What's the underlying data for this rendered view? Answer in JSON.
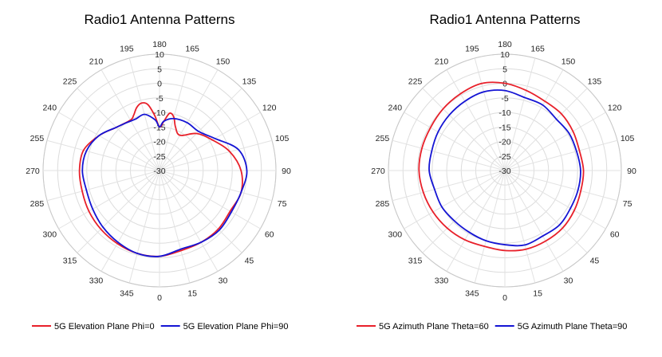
{
  "chart_data": [
    {
      "type": "polar-line",
      "title": "Radio1 Antenna Patterns",
      "r_ticks": [
        "10",
        "5",
        "0",
        "-5",
        "-10",
        "-15",
        "-20",
        "-25",
        "-30"
      ],
      "angle_ticks": [
        "0",
        "15",
        "30",
        "45",
        "60",
        "75",
        "90",
        "105",
        "120",
        "135",
        "150",
        "165",
        "180",
        "195",
        "210",
        "225",
        "240",
        "255",
        "270",
        "285",
        "300",
        "315",
        "330",
        "345"
      ],
      "rlim": [
        -30,
        10
      ],
      "grid": true,
      "legend": "bottom",
      "series": [
        {
          "name": "5G Elevation Plane Phi=0",
          "color": "#e8202a",
          "theta": [
            0,
            15,
            30,
            45,
            60,
            75,
            90,
            105,
            120,
            135,
            150,
            160,
            165,
            170,
            175,
            180,
            185,
            190,
            195,
            200,
            205,
            210,
            225,
            240,
            255,
            270,
            285,
            300,
            315,
            330,
            345
          ],
          "r": [
            -0.5,
            -1.5,
            -1.5,
            -1.5,
            -2,
            -1,
            -2,
            -5,
            -9,
            -12,
            -16,
            -14,
            -11,
            -10,
            -13,
            -15,
            -11,
            -7,
            -6,
            -7,
            -9,
            -10,
            -9,
            -6,
            -3,
            -2.5,
            -2.5,
            -2,
            -1.5,
            -1,
            -0.5
          ]
        },
        {
          "name": "5G Elevation Plane Phi=90",
          "color": "#1414d4",
          "theta": [
            0,
            15,
            30,
            45,
            60,
            75,
            90,
            105,
            120,
            135,
            150,
            165,
            175,
            180,
            185,
            195,
            205,
            215,
            225,
            240,
            255,
            270,
            285,
            300,
            315,
            330,
            345
          ],
          "r": [
            -0.5,
            -2,
            -1.5,
            -1,
            -1.5,
            -1,
            0,
            -2,
            -8,
            -11,
            -11,
            -11.5,
            -13,
            -15,
            -12.5,
            -10,
            -10.5,
            -10,
            -9,
            -6,
            -4,
            -3.5,
            -4,
            -3.5,
            -2.5,
            -1.5,
            -0.5
          ]
        }
      ]
    },
    {
      "type": "polar-line",
      "title": "Radio1 Antenna Patterns",
      "r_ticks": [
        "10",
        "5",
        "0",
        "-5",
        "-10",
        "-15",
        "-20",
        "-25",
        "-30"
      ],
      "angle_ticks": [
        "0",
        "15",
        "30",
        "45",
        "60",
        "75",
        "90",
        "105",
        "120",
        "135",
        "150",
        "165",
        "180",
        "195",
        "210",
        "225",
        "240",
        "255",
        "270",
        "285",
        "300",
        "315",
        "330",
        "345"
      ],
      "rlim": [
        -30,
        10
      ],
      "grid": true,
      "legend": "bottom",
      "series": [
        {
          "name": "5G Azimuth Plane Theta=60",
          "color": "#e8202a",
          "theta": [
            0,
            15,
            30,
            45,
            60,
            75,
            90,
            105,
            120,
            135,
            150,
            165,
            180,
            195,
            210,
            225,
            240,
            255,
            270,
            285,
            300,
            315,
            330,
            345
          ],
          "r": [
            -2.5,
            -2,
            -2,
            -2,
            -2.5,
            -3,
            -3,
            -3.5,
            -3,
            -2.5,
            -2.5,
            -1.5,
            0,
            1,
            0.5,
            0,
            -0.5,
            -0.5,
            -0.5,
            -1,
            -1.5,
            -2,
            -2.5,
            -3
          ]
        },
        {
          "name": "5G Azimuth Plane Theta=90",
          "color": "#1414d4",
          "theta": [
            0,
            15,
            30,
            45,
            60,
            75,
            90,
            105,
            120,
            135,
            150,
            165,
            180,
            195,
            210,
            225,
            240,
            255,
            270,
            285,
            300,
            315,
            330,
            345
          ],
          "r": [
            -4.5,
            -3.5,
            -4,
            -3.5,
            -4,
            -4,
            -4,
            -4.5,
            -4.5,
            -5,
            -4,
            -4,
            -2.5,
            -2,
            -2.5,
            -3,
            -3.5,
            -4,
            -4,
            -5,
            -5,
            -5.5,
            -5.5,
            -5
          ]
        }
      ]
    }
  ]
}
